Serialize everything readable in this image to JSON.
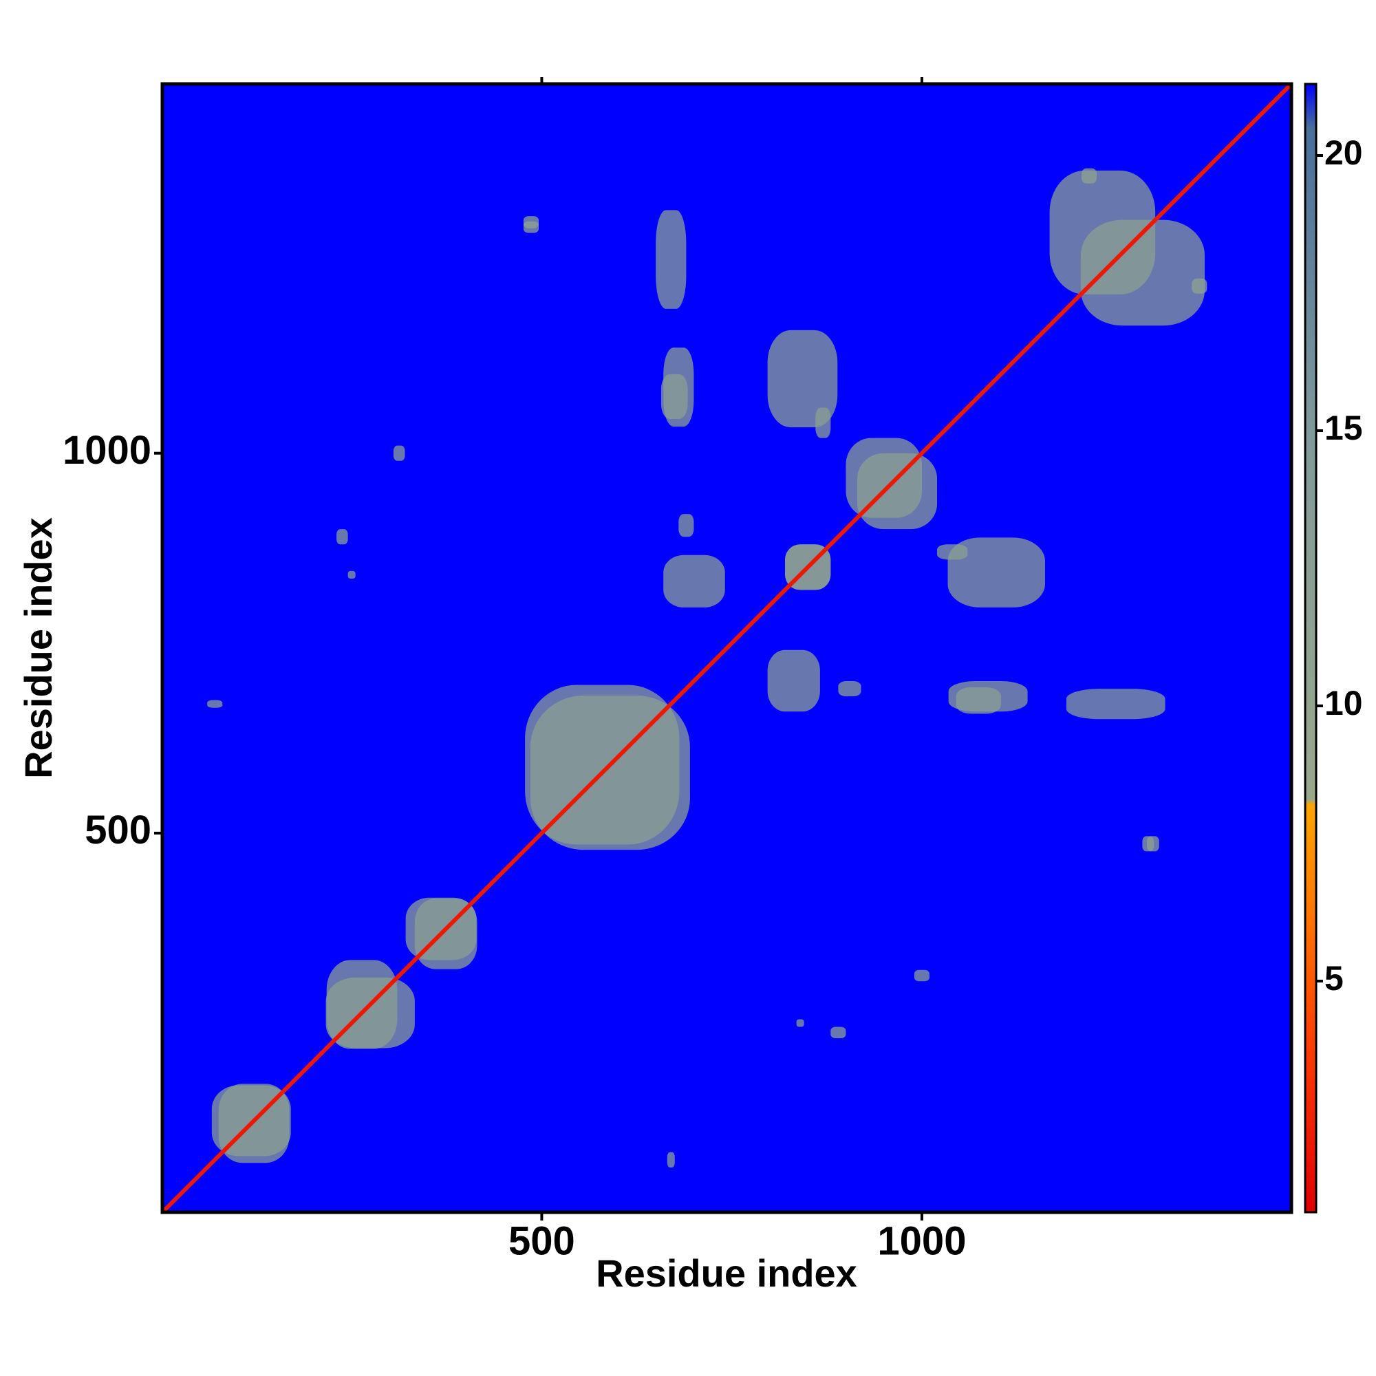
{
  "chart_data": {
    "type": "heatmap",
    "x_label": "Residue index",
    "y_label": "Residue index",
    "xlim": [
      1,
      1486
    ],
    "ylim": [
      1,
      1486
    ],
    "xticks": [
      500,
      1000
    ],
    "yticks": [
      500,
      1000
    ],
    "background": "#0000ff",
    "symmetric": true,
    "diagonal_value": 2,
    "regions": [
      {
        "x": [
          66,
          170
        ],
        "y": [
          75,
          168
        ],
        "value": 12
      },
      {
        "x": [
          217,
          310
        ],
        "y": [
          216,
          333
        ],
        "value": 12
      },
      {
        "x": [
          321,
          414
        ],
        "y": [
          333,
          415
        ],
        "value": 12
      },
      {
        "x": [
          478,
          681
        ],
        "y": [
          485,
          695
        ],
        "value": 12
      },
      {
        "x": [
          900,
          1000
        ],
        "y": [
          915,
          1020
        ],
        "value": 12
      },
      {
        "x": [
          820,
          880
        ],
        "y": [
          820,
          880
        ],
        "value": 11
      },
      {
        "x": [
          1168,
          1307
        ],
        "y": [
          1209,
          1372
        ],
        "value": 12
      },
      {
        "x": [
          797,
          889
        ],
        "y": [
          1034,
          1162
        ],
        "value": 12
      },
      {
        "x": [
          657,
          692
        ],
        "y": [
          1045,
          1104
        ],
        "value": 13
      },
      {
        "x": [
          797,
          866
        ],
        "y": [
          660,
          741
        ],
        "value": 12
      },
      {
        "x": [
          1035,
          1139
        ],
        "y": [
          660,
          700
        ],
        "value": 12
      },
      {
        "x": [
          1190,
          1320
        ],
        "y": [
          650,
          690
        ],
        "value": 13
      },
      {
        "x": [
          476,
          496
        ],
        "y": [
          1296,
          1312
        ],
        "value": 11
      },
      {
        "x": [
          1290,
          1305
        ],
        "y": [
          476,
          496
        ],
        "value": 11
      },
      {
        "x": [
          1355,
          1375
        ],
        "y": [
          1210,
          1230
        ],
        "value": 11
      },
      {
        "x": [
          245,
          255
        ],
        "y": [
          835,
          845
        ],
        "value": 12
      },
      {
        "x": [
          60,
          80
        ],
        "y": [
          665,
          675
        ],
        "value": 12
      },
      {
        "x": [
          680,
          700
        ],
        "y": [
          890,
          920
        ],
        "value": 12
      },
      {
        "x": [
          1020,
          1060
        ],
        "y": [
          860,
          880
        ],
        "value": 12
      },
      {
        "x": [
          880,
          900
        ],
        "y": [
          230,
          245
        ],
        "value": 12
      },
      {
        "x": [
          990,
          1010
        ],
        "y": [
          305,
          320
        ],
        "value": 12
      }
    ],
    "colorbar": {
      "lim": [
        0.8,
        21.3
      ],
      "ticks": [
        5,
        10,
        15,
        20
      ],
      "colorscale": [
        [
          0.8,
          "#e00000"
        ],
        [
          4,
          "#ff4000"
        ],
        [
          8.2,
          "#ffa500"
        ],
        [
          8.3,
          "#9aa88a"
        ],
        [
          15,
          "#7f9a9a"
        ],
        [
          20.5,
          "#4a6e9a"
        ],
        [
          21.3,
          "#0000ff"
        ]
      ]
    }
  }
}
